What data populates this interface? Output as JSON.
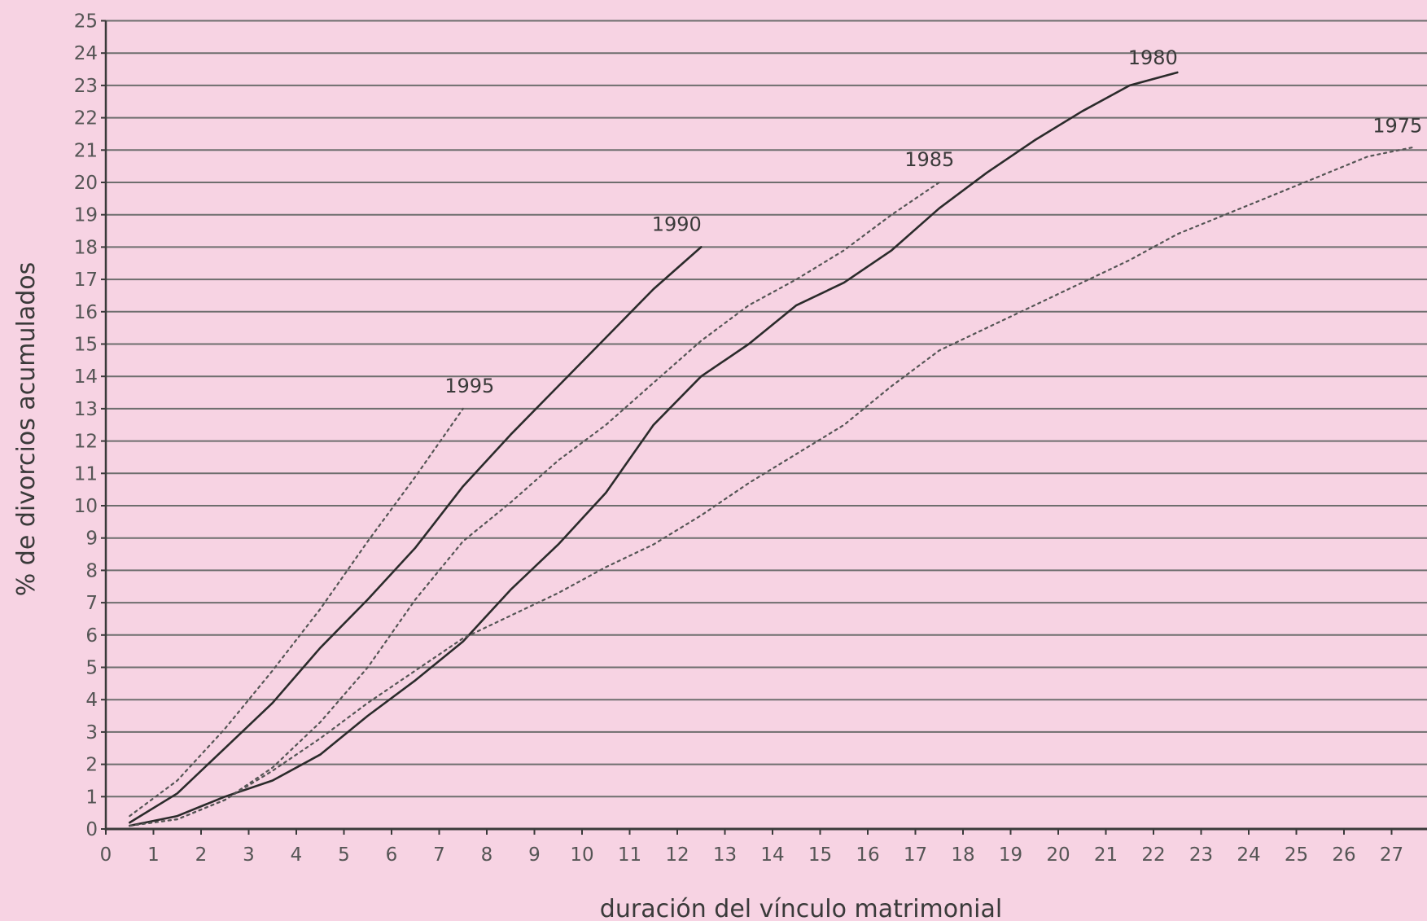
{
  "chart_data": {
    "type": "line",
    "title": "",
    "xlabel": "duración del vínculo matrimonial",
    "ylabel": "% de divorcios acumulados",
    "xlim": [
      0,
      28
    ],
    "ylim": [
      0,
      25
    ],
    "x_ticks": [
      "0",
      "1",
      "2",
      "3",
      "4",
      "5",
      "6",
      "7",
      "8",
      "9",
      "10",
      "11",
      "12",
      "13",
      "14",
      "15",
      "16",
      "17",
      "18",
      "19",
      "20",
      "21",
      "22",
      "23",
      "24",
      "25",
      "26",
      "27"
    ],
    "y_ticks": [
      "0",
      "1",
      "2",
      "3",
      "4",
      "5",
      "6",
      "7",
      "8",
      "9",
      "10",
      "11",
      "12",
      "13",
      "14",
      "15",
      "16",
      "17",
      "18",
      "19",
      "20",
      "21",
      "22",
      "23",
      "24",
      "25"
    ],
    "grid": "horizontal",
    "legend": "none (series labelled at line ends)",
    "colors": {
      "background": "#f7d3e3",
      "grid": "#6e6e6e",
      "solid": "#2b2b2b",
      "dotted": "#555555"
    },
    "series": [
      {
        "name": "1995",
        "style": "dotted",
        "x": [
          0.5,
          1.5,
          2.5,
          3.5,
          4.5,
          5.5,
          6.5,
          7.5
        ],
        "y": [
          0.4,
          1.5,
          3.1,
          4.9,
          6.8,
          8.9,
          10.9,
          13.0
        ]
      },
      {
        "name": "1990",
        "style": "solid",
        "x": [
          0.5,
          1.5,
          2.5,
          3.5,
          4.5,
          5.5,
          6.5,
          7.5,
          8.5,
          9.5,
          10.5,
          11.5,
          12.5
        ],
        "y": [
          0.2,
          1.1,
          2.5,
          3.9,
          5.6,
          7.1,
          8.7,
          10.6,
          12.2,
          13.7,
          15.2,
          16.7,
          18.0
        ]
      },
      {
        "name": "1985",
        "style": "dotted",
        "x": [
          0.5,
          1.5,
          2.5,
          3.5,
          4.5,
          5.5,
          6.5,
          7.5,
          8.5,
          9.5,
          10.5,
          11.5,
          12.5,
          13.5,
          14.5,
          15.5,
          16.5,
          17.5
        ],
        "y": [
          0.1,
          0.3,
          0.9,
          1.9,
          3.3,
          5.0,
          7.1,
          8.9,
          10.1,
          11.4,
          12.5,
          13.8,
          15.1,
          16.2,
          17.0,
          17.9,
          19.0,
          20.0
        ]
      },
      {
        "name": "1980",
        "style": "solid",
        "x": [
          0.5,
          1.5,
          2.5,
          3.5,
          4.5,
          5.5,
          6.5,
          7.5,
          8.5,
          9.5,
          10.5,
          11.5,
          12.5,
          13.5,
          14.5,
          15.5,
          16.5,
          17.5,
          18.5,
          19.5,
          20.5,
          21.5,
          22.5
        ],
        "y": [
          0.1,
          0.4,
          1.0,
          1.5,
          2.3,
          3.5,
          4.6,
          5.8,
          7.4,
          8.8,
          10.4,
          12.5,
          14.0,
          15.0,
          16.2,
          16.9,
          17.9,
          19.2,
          20.3,
          21.3,
          22.2,
          23.0,
          23.4
        ]
      },
      {
        "name": "1975",
        "style": "dotted",
        "x": [
          0.5,
          1.5,
          2.5,
          3.5,
          4.5,
          5.5,
          6.5,
          7.5,
          8.5,
          9.5,
          10.5,
          11.5,
          12.5,
          13.5,
          14.5,
          15.5,
          16.5,
          17.5,
          18.5,
          19.5,
          20.5,
          21.5,
          22.5,
          23.5,
          24.5,
          25.5,
          26.5,
          27.5
        ],
        "y": [
          0.1,
          0.3,
          0.9,
          1.8,
          2.8,
          3.9,
          4.9,
          5.9,
          6.6,
          7.3,
          8.1,
          8.8,
          9.7,
          10.7,
          11.6,
          12.5,
          13.7,
          14.8,
          15.5,
          16.2,
          16.9,
          17.6,
          18.4,
          19.0,
          19.6,
          20.2,
          20.8,
          21.1
        ]
      }
    ]
  }
}
